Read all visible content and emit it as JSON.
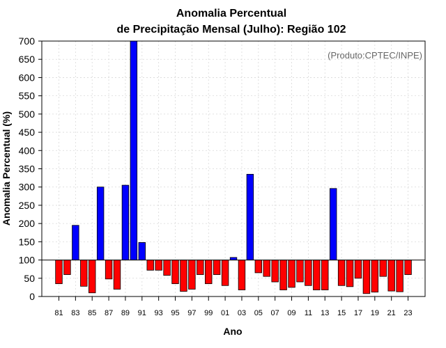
{
  "chart_data": {
    "type": "bar",
    "title": [
      "Anomalia Percentual",
      "de Precipitação Mensal (Julho): Região 102"
    ],
    "xlabel": "Ano",
    "ylabel": "Anomalia Percentual (%)",
    "credit": "(Produto:CPTEC/INPE)",
    "ylim": [
      0,
      700
    ],
    "yticks": [
      0,
      50,
      100,
      150,
      200,
      250,
      300,
      350,
      400,
      450,
      500,
      550,
      600,
      650,
      700
    ],
    "baseline": 100,
    "grid": true,
    "categories": [
      "81",
      "82",
      "83",
      "84",
      "85",
      "86",
      "87",
      "88",
      "89",
      "90",
      "91",
      "92",
      "93",
      "94",
      "95",
      "96",
      "97",
      "98",
      "99",
      "00",
      "01",
      "02",
      "03",
      "04",
      "05",
      "06",
      "07",
      "08",
      "09",
      "10",
      "11",
      "12",
      "13",
      "14",
      "15",
      "16",
      "17",
      "18",
      "19",
      "20",
      "21",
      "22",
      "23"
    ],
    "xtick_labels": [
      "81",
      "83",
      "85",
      "87",
      "89",
      "91",
      "93",
      "95",
      "97",
      "99",
      "01",
      "03",
      "05",
      "07",
      "09",
      "11",
      "13",
      "15",
      "17",
      "19",
      "21",
      "23"
    ],
    "values": [
      35,
      60,
      195,
      28,
      10,
      300,
      48,
      20,
      305,
      700,
      148,
      72,
      72,
      58,
      35,
      14,
      20,
      60,
      35,
      60,
      30,
      107,
      18,
      335,
      65,
      55,
      40,
      18,
      25,
      40,
      30,
      18,
      18,
      296,
      30,
      27,
      50,
      8,
      12,
      55,
      15,
      13,
      60
    ],
    "colors": {
      "above": "#0000ff",
      "below": "#ff0000"
    }
  }
}
